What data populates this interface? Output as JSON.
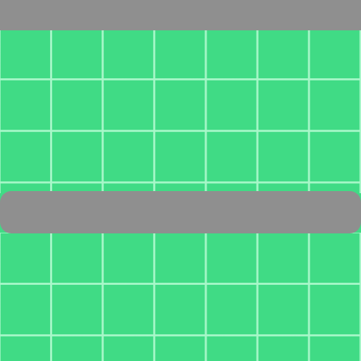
{
  "scene": {
    "type": "top-down tile view",
    "colors": {
      "grass": "#40db85",
      "grid": "#a8f7c9",
      "path": "#8f8f8f"
    },
    "elements": [
      "grass-top",
      "path-top",
      "path-middle",
      "grass-bottom"
    ]
  }
}
